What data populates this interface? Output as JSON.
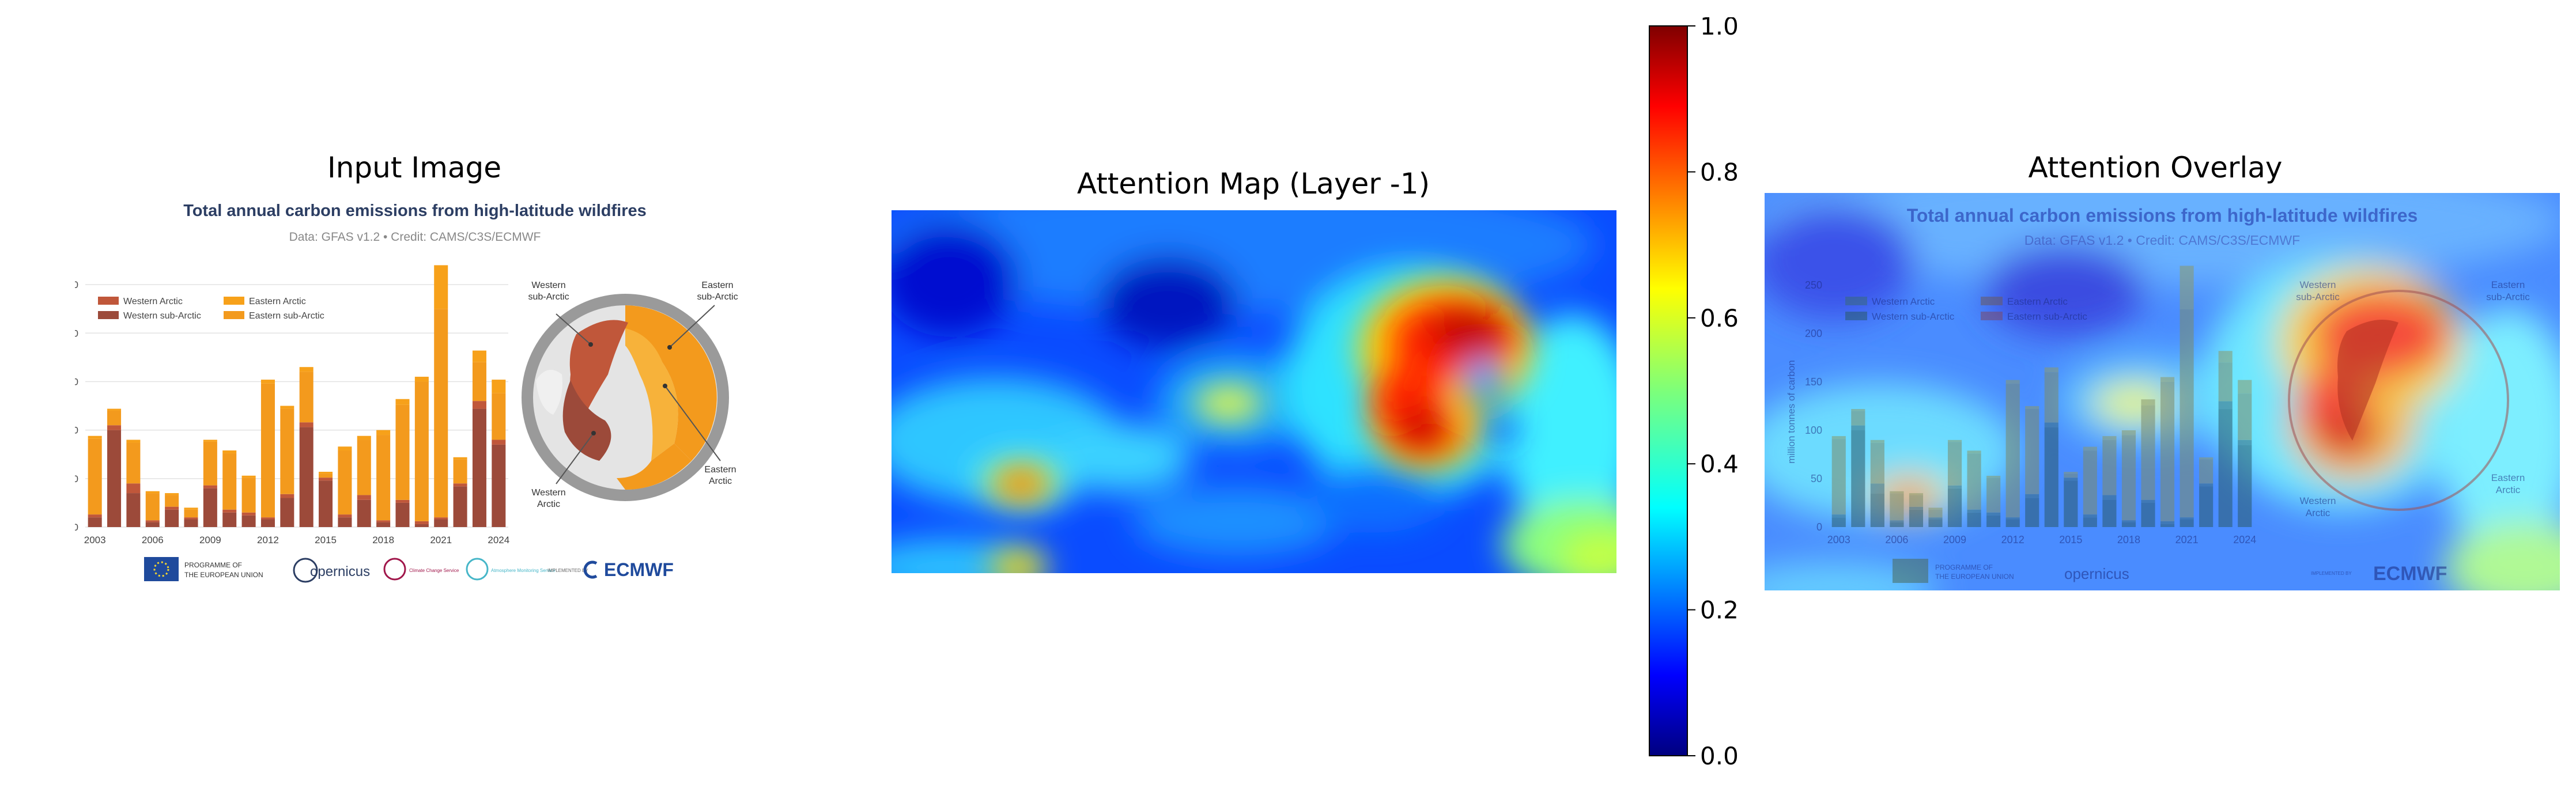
{
  "panels": {
    "input_title": "Input Image",
    "attention_title": "Attention Map (Layer -1)",
    "overlay_title": "Attention Overlay"
  },
  "colorbar": {
    "ticks": [
      "0.0",
      "0.2",
      "0.4",
      "0.6",
      "0.8",
      "1.0"
    ],
    "range": [
      0,
      1
    ],
    "colormap": "jet"
  },
  "infographic": {
    "title": "Total annual carbon emissions from high-latitude wildfires",
    "subtitle": "Data: GFAS v1.2 • Credit: CAMS/C3S/ECMWF",
    "map_labels": {
      "western_subarctic": [
        "Western",
        "sub-Arctic"
      ],
      "eastern_subarctic": [
        "Eastern",
        "sub-Arctic"
      ],
      "eastern_arctic": [
        "Eastern",
        "Arctic"
      ],
      "western_arctic": [
        "Western",
        "Arctic"
      ]
    },
    "logos": {
      "eu": [
        "PROGRAMME OF",
        "THE EUROPEAN UNION"
      ],
      "copernicus": "opernicus",
      "c3s": "Climate Change Service",
      "cams": "Atmosphere Monitoring Service",
      "implemented": "IMPLEMENTED BY",
      "ecmwf": "ECMWF"
    },
    "colors": {
      "western_arctic": "#c0573a",
      "western_subarctic": "#9c4a3a",
      "eastern_arctic": "#f7a11a",
      "eastern_subarctic": "#f39a1d",
      "title": "#2c3e63"
    }
  },
  "chart_data": {
    "type": "bar",
    "stacked": true,
    "title": "Total annual carbon emissions from high-latitude wildfires",
    "subtitle": "Data: GFAS v1.2 • Credit: CAMS/C3S/ECMWF",
    "ylabel": "million tonnes of carbon",
    "ylim": [
      0,
      275
    ],
    "yticks": [
      0,
      50,
      100,
      150,
      200,
      250
    ],
    "xtick_labels": [
      "2003",
      "2006",
      "2009",
      "2012",
      "2015",
      "2018",
      "2021",
      "2024"
    ],
    "categories": [
      "2003",
      "2004",
      "2005",
      "2006",
      "2007",
      "2008",
      "2009",
      "2010",
      "2011",
      "2012",
      "2013",
      "2014",
      "2015",
      "2016",
      "2017",
      "2018",
      "2019",
      "2020",
      "2021",
      "2022",
      "2023",
      "2024"
    ],
    "series": [
      {
        "name": "Western sub-Arctic",
        "values": [
          10,
          100,
          35,
          5,
          18,
          8,
          40,
          15,
          12,
          8,
          30,
          103,
          48,
          10,
          28,
          5,
          25,
          3,
          8,
          42,
          122,
          85
        ]
      },
      {
        "name": "Western Arctic",
        "values": [
          3,
          5,
          10,
          2,
          3,
          2,
          3,
          3,
          3,
          2,
          4,
          5,
          3,
          3,
          5,
          2,
          3,
          3,
          2,
          3,
          8,
          5
        ]
      },
      {
        "name": "Eastern sub-Arctic",
        "values": [
          78,
          15,
          42,
          28,
          12,
          8,
          45,
          58,
          36,
          138,
          88,
          52,
          4,
          66,
          57,
          88,
          98,
          144,
          215,
          25,
          40,
          48
        ]
      },
      {
        "name": "Eastern Arctic",
        "values": [
          3,
          2,
          3,
          2,
          2,
          2,
          2,
          3,
          2,
          4,
          3,
          5,
          2,
          4,
          4,
          5,
          6,
          5,
          45,
          2,
          12,
          14
        ]
      }
    ],
    "legend_position": "top-left",
    "grid": true
  }
}
